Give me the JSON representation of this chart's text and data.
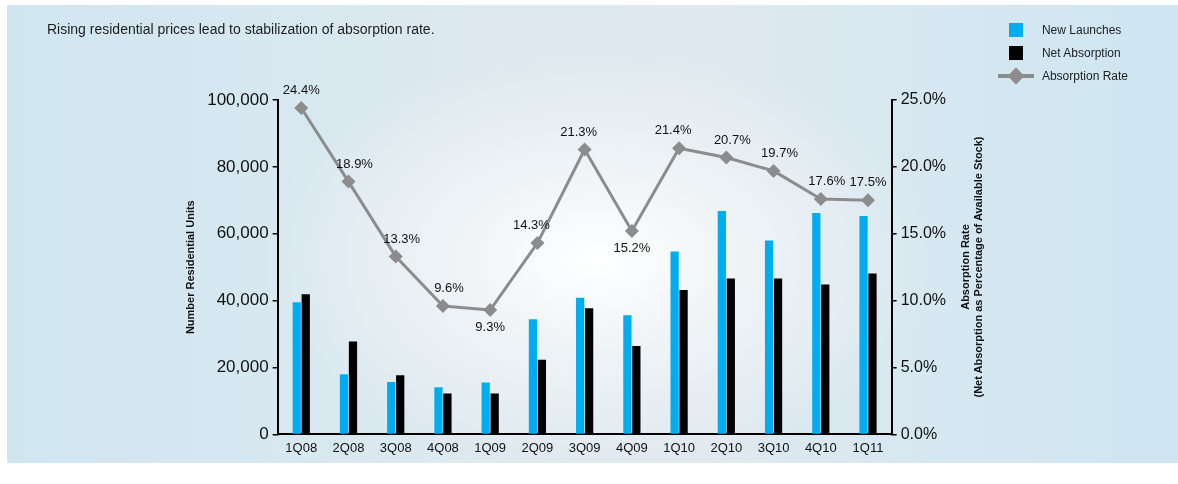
{
  "chart_data": {
    "type": "bar",
    "title": "Rising residential prices lead to stabilization of absorption rate.",
    "ylabel": "Number Residential Units",
    "y2label": "Absorption Rate\n(Net Absorption as Percentage of Available Stock)",
    "categories": [
      "1Q08",
      "2Q08",
      "3Q08",
      "4Q08",
      "1Q09",
      "2Q09",
      "3Q09",
      "4Q09",
      "1Q10",
      "2Q10",
      "3Q10",
      "4Q10",
      "1Q11"
    ],
    "series": [
      {
        "name": "New Launches",
        "color": "#00aeef",
        "values": [
          39500,
          18000,
          15700,
          14100,
          15500,
          34400,
          40900,
          35600,
          54700,
          66800,
          58000,
          66200,
          65300
        ]
      },
      {
        "name": "Net Absorption",
        "color": "#000000",
        "values": [
          41900,
          27800,
          17700,
          12200,
          12200,
          22300,
          37700,
          26400,
          43200,
          46600,
          46600,
          44800,
          48100
        ]
      },
      {
        "name": "Absorption Rate",
        "type": "line",
        "axis": "y2",
        "color": "#8c8c8c",
        "values": [
          24.4,
          18.9,
          13.3,
          9.6,
          9.3,
          14.3,
          21.3,
          15.2,
          21.4,
          20.7,
          19.7,
          17.6,
          17.5
        ],
        "value_labels": [
          "24.4%",
          "18.9%",
          "13.3%",
          "9.6%",
          "9.3%",
          "14.3%",
          "21.3%",
          "15.2%",
          "21.4%",
          "20.7%",
          "19.7%",
          "17.6%",
          "17.5%"
        ]
      }
    ],
    "ylim": [
      0,
      100000
    ],
    "yticks": [
      0,
      {
        "value": 20000,
        "label": "20,000"
      },
      {
        "value": 40000,
        "label": "40,000"
      },
      {
        "value": 60000,
        "label": "60,000"
      },
      {
        "value": 80000,
        "label": "80,000"
      },
      {
        "value": 100000,
        "label": "100,000"
      }
    ],
    "y2lim": [
      0,
      25
    ],
    "y2ticks": [
      {
        "value": 0,
        "label": "0.0%"
      },
      {
        "value": 5,
        "label": "5.0%"
      },
      {
        "value": 10,
        "label": "10.0%"
      },
      {
        "value": 15,
        "label": "15.0%"
      },
      {
        "value": 20,
        "label": "20.0%"
      },
      {
        "value": 25,
        "label": "25.0%"
      }
    ],
    "legend": "top right",
    "grid": false,
    "marker": "diamond"
  }
}
